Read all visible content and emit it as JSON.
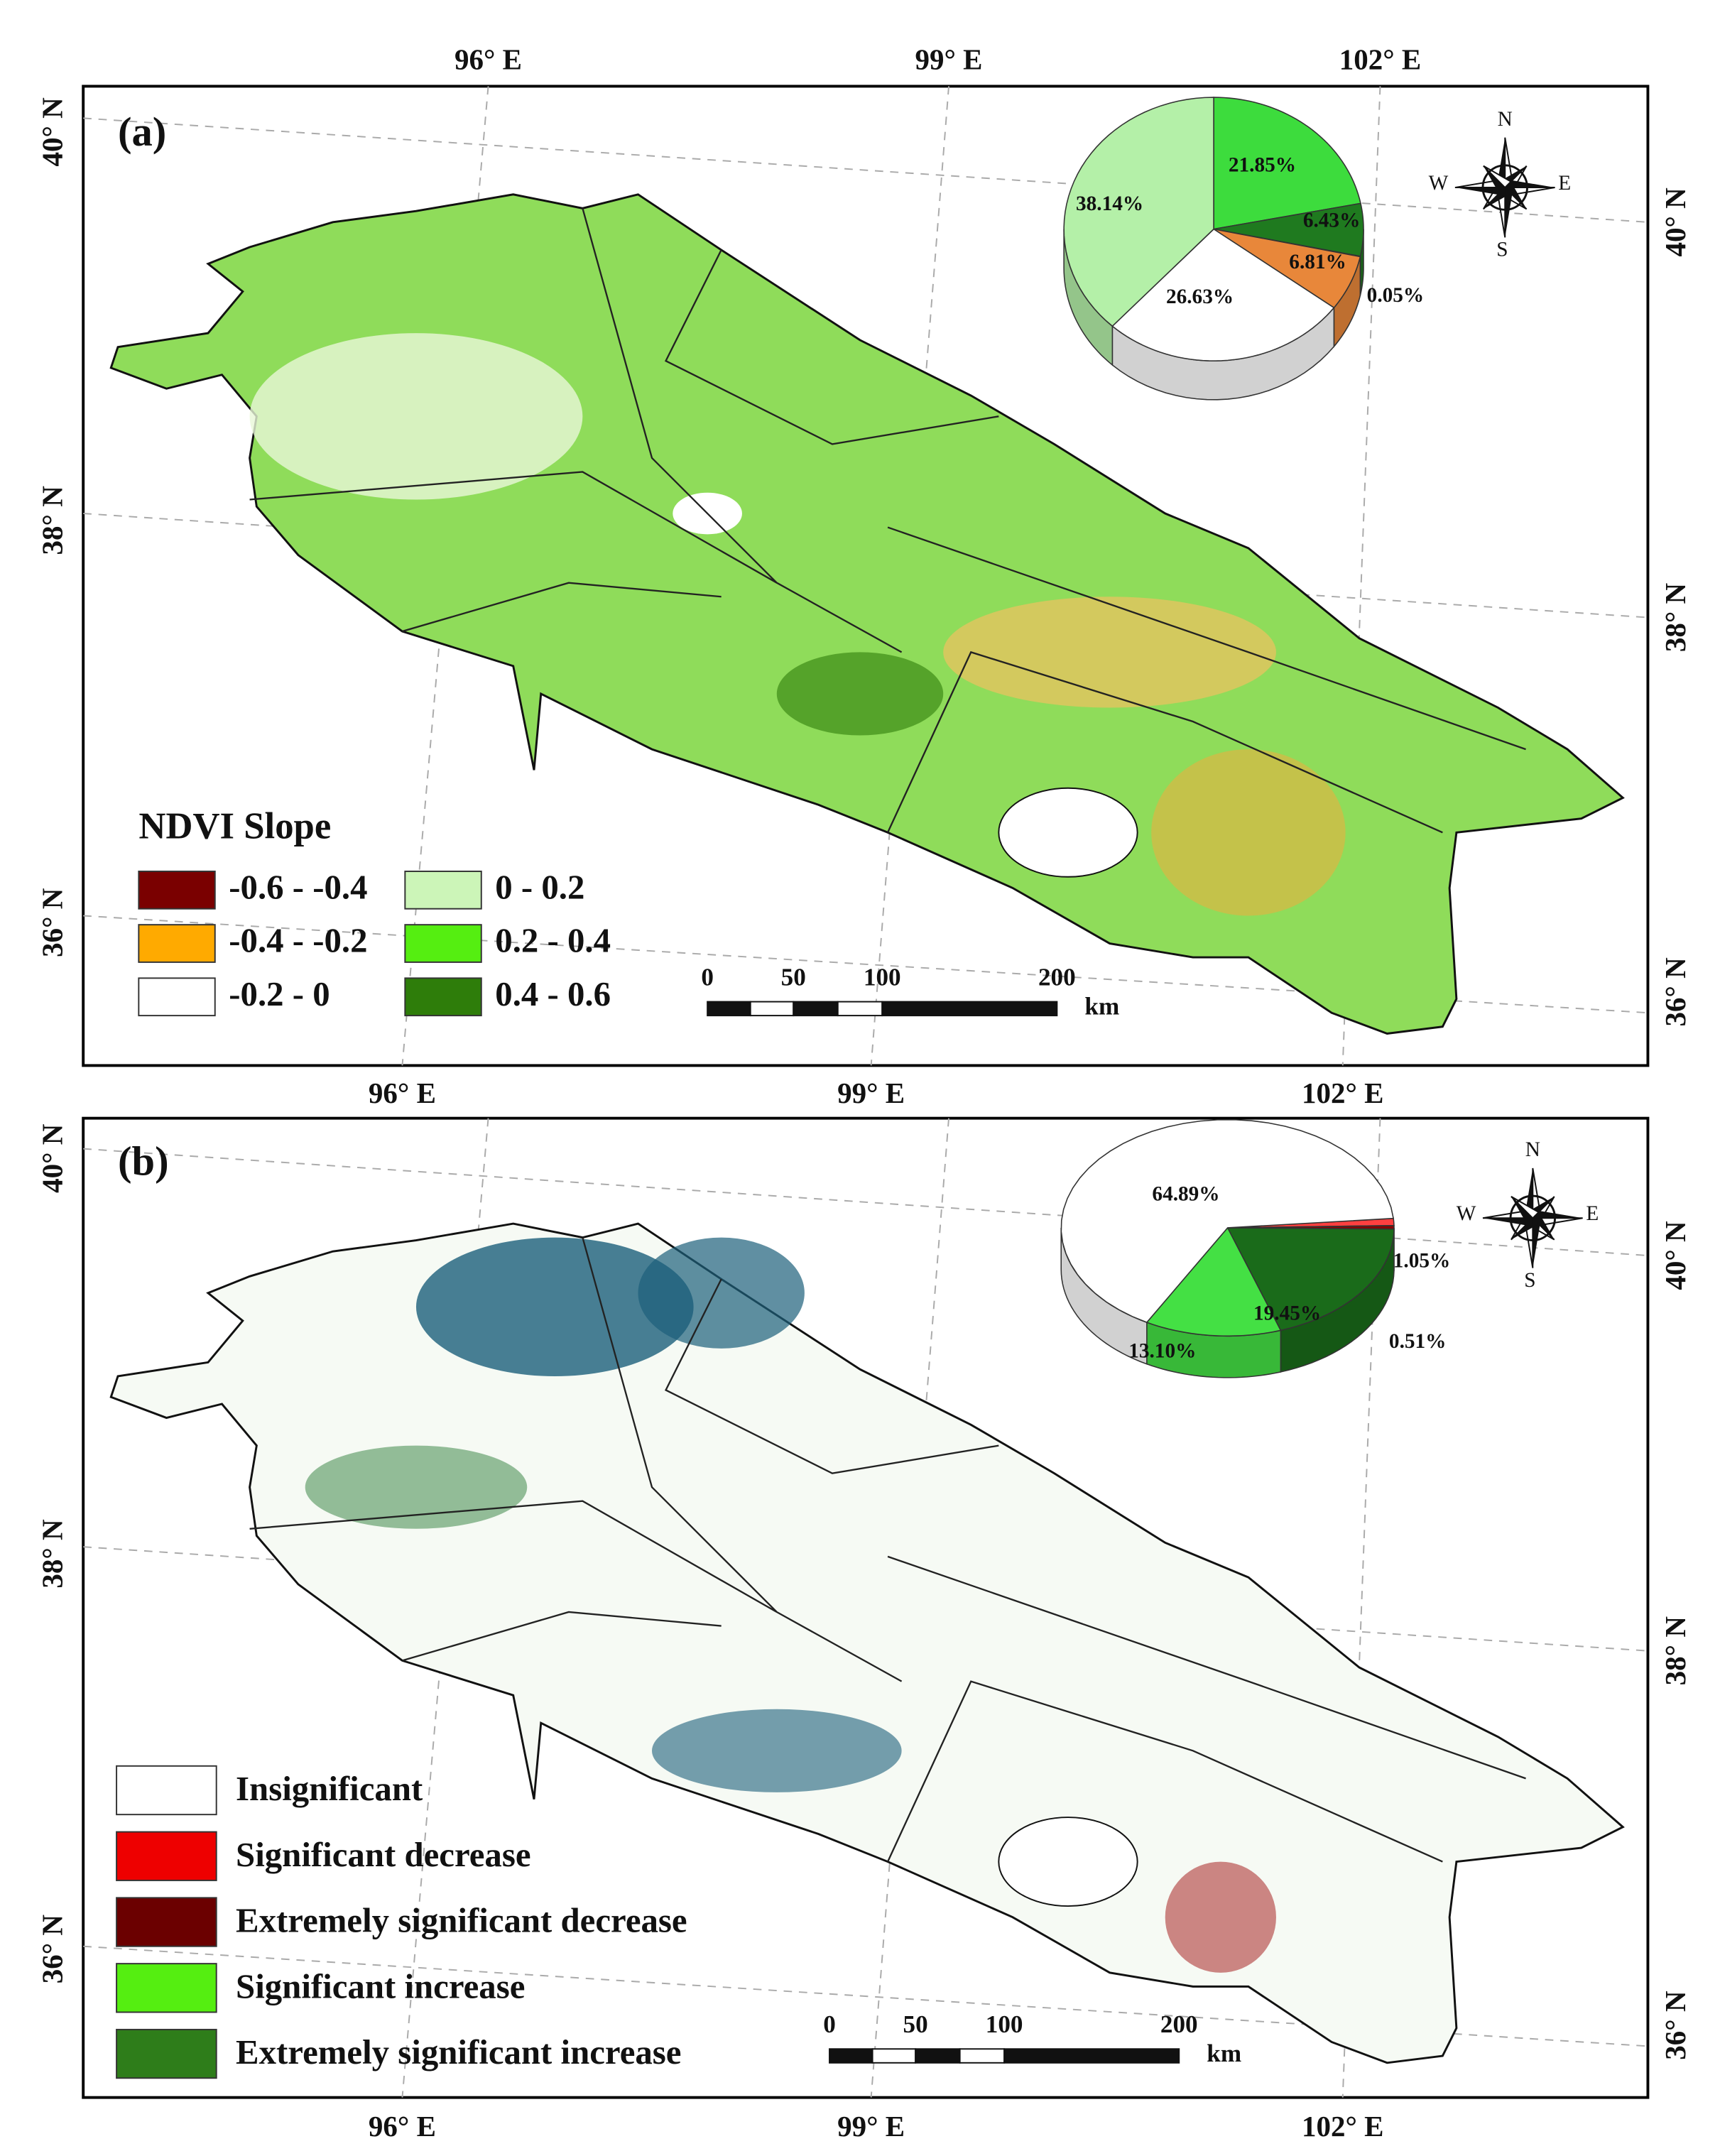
{
  "panels": [
    {
      "label": "(a)",
      "top_labels": [
        "96° E",
        "99° E",
        "102° E"
      ],
      "bottom_labels": [
        "96° E",
        "99° E",
        "102° E"
      ],
      "left_labels": [
        "40° N",
        "38° N",
        "36° N"
      ],
      "right_labels": [
        "40° N",
        "38° N",
        "36° N"
      ],
      "compass": [
        "N",
        "S",
        "W",
        "E"
      ],
      "scale_labels": [
        "0",
        "50",
        "100",
        "200"
      ],
      "scale_unit": "km",
      "legend_title": "NDVI Slope",
      "legend": [
        {
          "name": "-0.6 - -0.4",
          "color": "#7a0000"
        },
        {
          "name": "-0.4 - -0.2",
          "color": "#ffaa00"
        },
        {
          "name": "-0.2 - 0",
          "color": "#ffffff"
        },
        {
          "name": "0 - 0.2",
          "color": "#ccf5b8"
        },
        {
          "name": "0.2 - 0.4",
          "color": "#55ee11"
        },
        {
          "name": "0.4 - 0.6",
          "color": "#2e7d0a"
        }
      ],
      "pie": {
        "values": [
          21.85,
          6.43,
          0.05,
          6.81,
          26.63,
          38.14
        ],
        "value_labels": [
          "21.85%",
          "6.43%",
          "0.05%",
          "6.81%",
          "26.63%",
          "38.14%"
        ],
        "colors": [
          "#3ddc3d",
          "#1f7a1f",
          "#8b0000",
          "#e8873a",
          "#ffffff",
          "#b4f0a8"
        ]
      }
    },
    {
      "label": "(b)",
      "bottom_labels": [
        "96° E",
        "99° E",
        "102° E"
      ],
      "left_labels": [
        "40° N",
        "38° N",
        "36° N"
      ],
      "right_labels": [
        "40° N",
        "38° N",
        "36° N"
      ],
      "compass": [
        "N",
        "S",
        "W",
        "E"
      ],
      "scale_labels": [
        "0",
        "50",
        "100",
        "200"
      ],
      "scale_unit": "km",
      "legend": [
        {
          "name": "Insignificant",
          "color": "#ffffff"
        },
        {
          "name": "Significant decrease",
          "color": "#ee0000"
        },
        {
          "name": "Extremely significant decrease",
          "color": "#6b0000"
        },
        {
          "name": "Significant increase",
          "color": "#55ee11"
        },
        {
          "name": "Extremely significant increase",
          "color": "#2e7d1a"
        }
      ],
      "pie": {
        "values": [
          1.05,
          0.51,
          19.45,
          13.1,
          64.89
        ],
        "value_labels": [
          "1.05%",
          "0.51%",
          "19.45%",
          "13.10%",
          "64.89%"
        ],
        "colors": [
          "#ff4040",
          "#8b0000",
          "#1a6b1a",
          "#44e044",
          "#ffffff"
        ]
      }
    }
  ]
}
